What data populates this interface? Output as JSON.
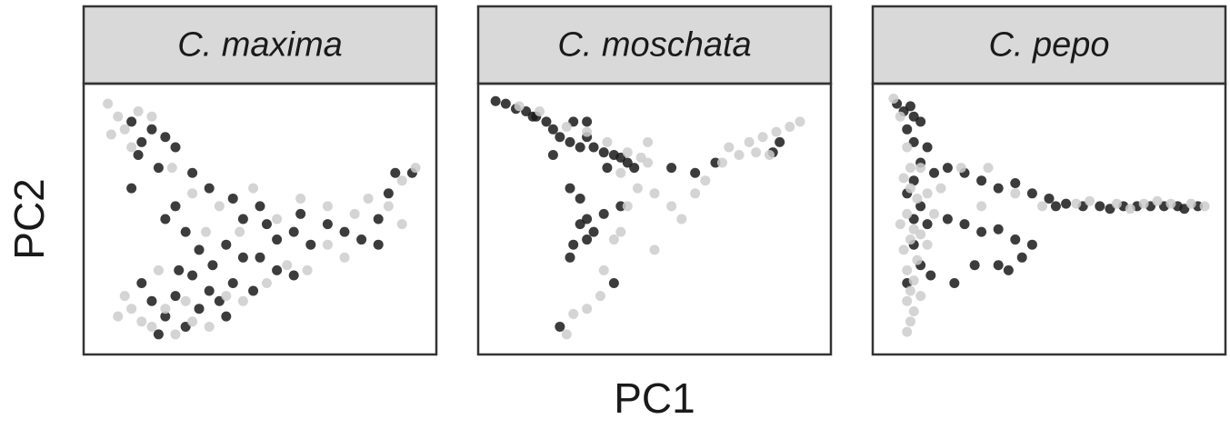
{
  "xlabel": "PC1",
  "ylabel": "PC2",
  "chart_data": [
    {
      "type": "scatter",
      "title": "C. maxima",
      "xlim": [
        0,
        100
      ],
      "ylim": [
        0,
        100
      ],
      "series": [
        {
          "color": "#1a1a1a",
          "x": [
            12,
            15,
            18,
            22,
            25,
            14,
            20,
            30,
            12,
            25,
            22,
            28,
            35,
            42,
            45,
            50,
            52,
            40,
            32,
            36,
            45,
            55,
            60,
            62,
            65,
            70,
            75,
            80,
            85,
            88,
            90,
            95,
            18,
            22,
            25,
            28,
            32,
            35,
            15,
            20,
            38,
            42,
            48,
            55,
            60,
            30,
            26,
            40,
            50,
            85
          ],
          "values": [
            88,
            80,
            85,
            82,
            78,
            75,
            70,
            68,
            62,
            55,
            50,
            45,
            62,
            58,
            50,
            55,
            48,
            40,
            38,
            32,
            35,
            42,
            45,
            52,
            40,
            48,
            45,
            42,
            50,
            60,
            68,
            68,
            18,
            12,
            20,
            8,
            15,
            22,
            25,
            5,
            18,
            25,
            22,
            30,
            28,
            28,
            30,
            12,
            35,
            40
          ]
        },
        {
          "color": "#cccccc",
          "x": [
            5,
            8,
            10,
            6,
            14,
            18,
            12,
            24,
            30,
            38,
            48,
            55,
            62,
            70,
            78,
            82,
            88,
            92,
            96,
            92,
            12,
            15,
            18,
            22,
            25,
            28,
            30,
            35,
            40,
            45,
            10,
            8,
            52,
            58,
            64,
            70,
            75,
            44,
            34,
            20
          ],
          "values": [
            95,
            90,
            85,
            83,
            92,
            90,
            78,
            70,
            60,
            55,
            62,
            50,
            58,
            55,
            52,
            58,
            55,
            65,
            70,
            48,
            15,
            10,
            8,
            15,
            5,
            18,
            10,
            8,
            20,
            18,
            20,
            12,
            25,
            32,
            30,
            40,
            35,
            45,
            45,
            30
          ]
        }
      ]
    },
    {
      "type": "scatter",
      "title": "C. moschata",
      "xlim": [
        0,
        100
      ],
      "ylim": [
        0,
        100
      ],
      "series": [
        {
          "color": "#1a1a1a",
          "x": [
            3,
            6,
            9,
            12,
            15,
            18,
            20,
            22,
            25,
            28,
            32,
            35,
            38,
            40,
            42,
            44,
            26,
            30,
            20,
            36,
            25,
            28,
            30,
            28,
            32,
            26,
            25,
            30,
            35,
            40,
            55,
            62,
            68,
            85,
            87,
            14,
            38,
            22,
            30
          ],
          "values": [
            96,
            95,
            93,
            92,
            90,
            88,
            85,
            82,
            80,
            78,
            78,
            76,
            75,
            74,
            72,
            70,
            88,
            82,
            75,
            70,
            62,
            58,
            50,
            48,
            45,
            40,
            35,
            42,
            52,
            55,
            70,
            68,
            72,
            76,
            80,
            90,
            25,
            8,
            88
          ]
        },
        {
          "color": "#cccccc",
          "x": [
            10,
            16,
            24,
            30,
            36,
            42,
            46,
            48,
            40,
            45,
            42,
            40,
            38,
            35,
            34,
            30,
            26,
            24,
            50,
            55,
            58,
            62,
            65,
            70,
            72,
            75,
            78,
            82,
            86,
            90,
            93,
            80,
            84,
            48,
            50
          ],
          "values": [
            94,
            92,
            86,
            84,
            80,
            76,
            74,
            72,
            68,
            62,
            55,
            45,
            42,
            30,
            20,
            15,
            13,
            5,
            60,
            55,
            50,
            60,
            65,
            72,
            78,
            75,
            80,
            82,
            84,
            86,
            88,
            76,
            75,
            80,
            38
          ]
        }
      ]
    },
    {
      "type": "scatter",
      "title": "C. pepo",
      "xlim": [
        0,
        100
      ],
      "ylim": [
        0,
        100
      ],
      "series": [
        {
          "color": "#1a1a1a",
          "x": [
            5,
            7,
            9,
            10,
            12,
            8,
            10,
            14,
            12,
            16,
            20,
            25,
            30,
            35,
            40,
            45,
            50,
            52,
            55,
            60,
            65,
            68,
            72,
            76,
            80,
            84,
            88,
            90,
            94,
            10,
            8,
            12,
            10,
            14,
            20,
            25,
            30,
            35,
            40,
            45,
            42,
            38,
            35,
            10,
            12,
            15,
            8,
            22,
            28
          ],
          "values": [
            95,
            92,
            94,
            90,
            88,
            85,
            80,
            78,
            72,
            68,
            70,
            68,
            65,
            62,
            64,
            60,
            58,
            55,
            56,
            55,
            55,
            54,
            55,
            55,
            55,
            55,
            55,
            54,
            55,
            65,
            60,
            55,
            50,
            48,
            50,
            48,
            45,
            46,
            42,
            40,
            35,
            30,
            32,
            40,
            32,
            28,
            25,
            25,
            32
          ]
        },
        {
          "color": "#cccccc",
          "x": [
            4,
            6,
            8,
            9,
            7,
            9,
            11,
            8,
            10,
            9,
            7,
            11,
            8,
            10,
            9,
            8,
            10,
            9,
            8,
            12,
            14,
            18,
            24,
            32,
            40,
            48,
            58,
            62,
            70,
            74,
            78,
            82,
            86,
            92,
            96,
            12,
            16,
            6,
            12,
            14,
            30
          ],
          "values": [
            97,
            90,
            78,
            70,
            66,
            62,
            58,
            52,
            46,
            42,
            38,
            34,
            30,
            26,
            22,
            18,
            14,
            10,
            6,
            20,
            40,
            62,
            70,
            70,
            60,
            55,
            56,
            57,
            56,
            54,
            56,
            57,
            56,
            56,
            55,
            44,
            52,
            48,
            70,
            60,
            55
          ]
        }
      ]
    }
  ]
}
